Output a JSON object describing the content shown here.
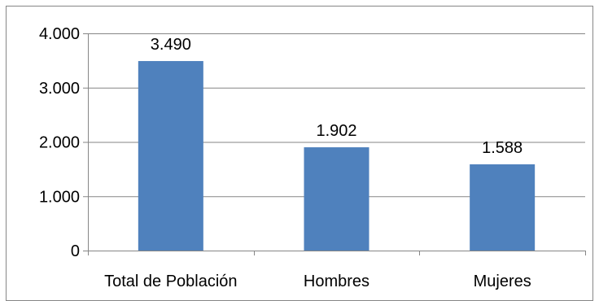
{
  "chart_data": {
    "type": "bar",
    "categories": [
      "Total de Población",
      "Hombres",
      "Mujeres"
    ],
    "values": [
      3490,
      1902,
      1588
    ],
    "value_labels": [
      "3.490",
      "1.902",
      "1.588"
    ],
    "ylim": [
      0,
      4000
    ],
    "y_ticks": [
      0,
      1000,
      2000,
      3000,
      4000
    ],
    "y_tick_labels": [
      "0",
      "1.000",
      "2.000",
      "3.000",
      "4.000"
    ],
    "title": "",
    "xlabel": "",
    "ylabel": "",
    "grid": true,
    "legend": "none",
    "colors": {
      "bar": "#4F81BD",
      "grid": "#868686",
      "axis": "#868686",
      "border": "#868686"
    }
  }
}
